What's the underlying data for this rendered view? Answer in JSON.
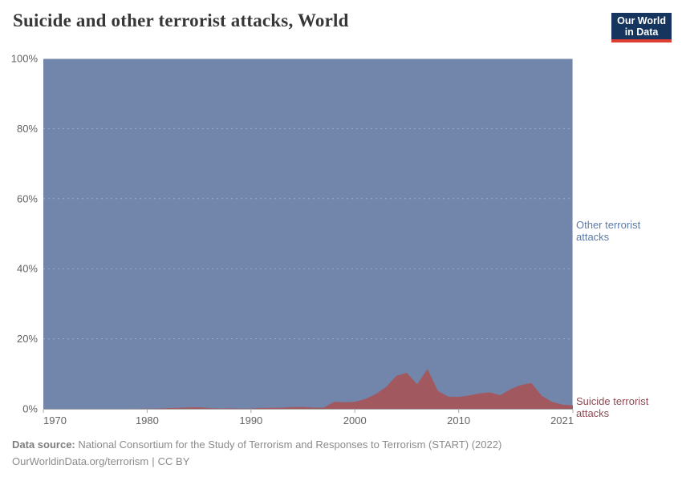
{
  "header": {
    "title": "Suicide and other terrorist attacks, World"
  },
  "logo": {
    "line1": "Our World",
    "line2": "in Data",
    "bg_color": "#15355e",
    "accent_color": "#dc3e33"
  },
  "chart_data": {
    "type": "area",
    "stacked": true,
    "unit": "%",
    "grid": "dashed",
    "legend_position": "right-edge-annotations",
    "xlim": [
      1970,
      2021
    ],
    "ylim": [
      0,
      100
    ],
    "xticks": [
      1970,
      1980,
      1990,
      2000,
      2010,
      2021
    ],
    "yticks": [
      "0%",
      "20%",
      "40%",
      "60%",
      "80%",
      "100%"
    ],
    "ytick_values": [
      0,
      20,
      40,
      60,
      80,
      100
    ],
    "axis_color": "#a8a8a8",
    "tick_label_color": "#636363",
    "x": [
      1970,
      1971,
      1972,
      1973,
      1974,
      1975,
      1976,
      1977,
      1978,
      1979,
      1980,
      1981,
      1982,
      1983,
      1984,
      1985,
      1986,
      1987,
      1988,
      1989,
      1990,
      1991,
      1992,
      1993,
      1994,
      1995,
      1996,
      1997,
      1998,
      1999,
      2000,
      2001,
      2002,
      2003,
      2004,
      2005,
      2006,
      2007,
      2008,
      2009,
      2010,
      2011,
      2012,
      2013,
      2014,
      2015,
      2016,
      2017,
      2018,
      2019,
      2020,
      2021
    ],
    "series": [
      {
        "name": "Suicide terrorist attacks",
        "color": "#a2585f",
        "label_color": "#8f4a53",
        "values": [
          0,
          0,
          0,
          0,
          0,
          0,
          0,
          0,
          0,
          0,
          0.05,
          0.1,
          0.2,
          0.3,
          0.4,
          0.45,
          0.2,
          0.1,
          0.15,
          0.1,
          0.1,
          0.25,
          0.3,
          0.35,
          0.5,
          0.55,
          0.35,
          0.35,
          2.0,
          1.9,
          2.0,
          2.8,
          4.2,
          6.2,
          9.4,
          10.3,
          7.0,
          11.4,
          5.1,
          3.5,
          3.4,
          3.8,
          4.4,
          4.7,
          3.9,
          5.6,
          6.8,
          7.4,
          3.7,
          2.0,
          1.2,
          1.0
        ]
      },
      {
        "name": "Other terrorist attacks",
        "color": "#7286ac",
        "label_color": "#5b7ba8",
        "values": [
          100,
          100,
          100,
          100,
          100,
          100,
          100,
          100,
          100,
          100,
          99.95,
          99.9,
          99.8,
          99.7,
          99.6,
          99.55,
          99.8,
          99.9,
          99.85,
          99.9,
          99.9,
          99.75,
          99.7,
          99.65,
          99.5,
          99.45,
          99.65,
          99.65,
          98.0,
          98.1,
          98.0,
          97.2,
          95.8,
          93.8,
          90.6,
          89.7,
          93.0,
          88.6,
          94.9,
          96.5,
          96.6,
          96.2,
          95.6,
          95.3,
          96.1,
          94.4,
          93.2,
          92.6,
          96.3,
          98.0,
          98.8,
          99.0
        ]
      }
    ],
    "title": "Suicide and other terrorist attacks, World",
    "xlabel": "",
    "ylabel": ""
  },
  "footer": {
    "source_label": "Data source:",
    "source_text": " National Consortium for the Study of Terrorism and Responses to Terrorism (START) (2022)",
    "url": "OurWorldinData.org/terrorism",
    "divider": "|",
    "license": "CC BY"
  }
}
